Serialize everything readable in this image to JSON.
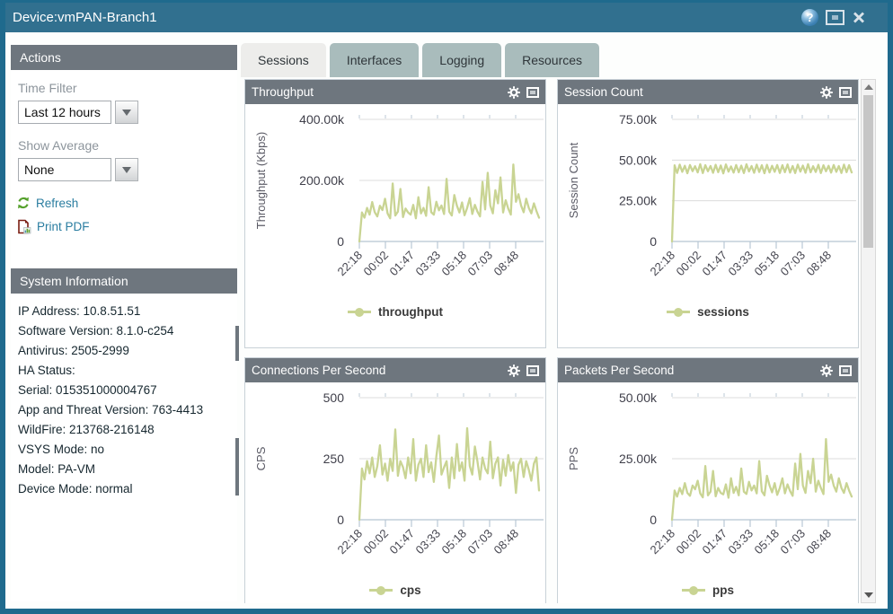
{
  "window": {
    "title": "Device:vmPAN-Branch1"
  },
  "icons": {
    "help_glyph": "?"
  },
  "colors": {
    "window_border": "#1f6a8d",
    "titlebar": "#31708f",
    "panel_header": "#6e767e",
    "tab_inactive": "#a9bcbc",
    "tab_active": "#ededeb",
    "link": "#2a7da0",
    "chart_line": "#c9d493"
  },
  "sidebar": {
    "actions": {
      "header": "Actions",
      "time_filter_label": "Time Filter",
      "time_filter_value": "Last 12 hours",
      "show_average_label": "Show Average",
      "show_average_value": "None",
      "refresh_label": "Refresh",
      "print_pdf_label": "Print PDF"
    },
    "system_information": {
      "header": "System Information",
      "lines": [
        "IP Address: 10.8.51.51",
        "Software Version: 8.1.0-c254",
        "Antivirus: 2505-2999",
        "HA Status:",
        "Serial: 015351000004767",
        "App and Threat Version: 763-4413",
        "WildFire: 213768-216148",
        "VSYS Mode: no",
        "Model: PA-VM",
        "Device Mode: normal"
      ]
    }
  },
  "tabs": [
    {
      "label": "Sessions",
      "active": true
    },
    {
      "label": "Interfaces",
      "active": false
    },
    {
      "label": "Logging",
      "active": false
    },
    {
      "label": "Resources",
      "active": false
    }
  ],
  "chart_data": [
    {
      "type": "line",
      "title": "Throughput",
      "ylabel": "Throughput (Kbps)",
      "legend": "throughput",
      "color": "#c9d493",
      "ymax": 400,
      "yticks": [
        {
          "label": "400.00k",
          "value": 400
        },
        {
          "label": "200.00k",
          "value": 200
        },
        {
          "label": "0",
          "value": 0
        }
      ],
      "x_labels": [
        "22:18",
        "00:02",
        "01:47",
        "03:33",
        "05:18",
        "07:03",
        "08:48"
      ],
      "unit": "Kbps (values in thousands)",
      "values": [
        0,
        95,
        78,
        110,
        88,
        129,
        96,
        82,
        117,
        103,
        140,
        92,
        76,
        190,
        85,
        98,
        172,
        80,
        108,
        95,
        88,
        120,
        76,
        145,
        92,
        110,
        84,
        178,
        96,
        88,
        130,
        102,
        118,
        90,
        205,
        98,
        85,
        152,
        117,
        95,
        128,
        86,
        110,
        142,
        90,
        120,
        98,
        82,
        195,
        105,
        225,
        118,
        92,
        168,
        125,
        210,
        95,
        135,
        108,
        88,
        252,
        130,
        155,
        118,
        96,
        140,
        110,
        92,
        125,
        100,
        78
      ]
    },
    {
      "type": "line",
      "title": "Session Count",
      "ylabel": "Session Count",
      "legend": "sessions",
      "color": "#c9d493",
      "ymax": 75,
      "yticks": [
        {
          "label": "75.00k",
          "value": 75
        },
        {
          "label": "50.00k",
          "value": 50
        },
        {
          "label": "25.00k",
          "value": 25
        },
        {
          "label": "0",
          "value": 0
        }
      ],
      "x_labels": [
        "22:18",
        "00:02",
        "01:47",
        "03:33",
        "05:18",
        "07:03",
        "08:48"
      ],
      "unit": "sessions (values in thousands)",
      "values": [
        0,
        46.8,
        42.1,
        47.2,
        42.8,
        46.5,
        41.9,
        47.0,
        43.2,
        46.2,
        42.4,
        47.5,
        42.0,
        46.9,
        43.1,
        46.4,
        42.2,
        47.1,
        42.6,
        46.7,
        41.8,
        47.3,
        42.9,
        46.1,
        42.3,
        47.0,
        42.5,
        46.6,
        42.0,
        47.4,
        43.0,
        46.3,
        42.2,
        47.2,
        42.7,
        46.8,
        41.9,
        47.1,
        42.4,
        46.5,
        42.8,
        47.0,
        42.1,
        46.9,
        42.6,
        47.3,
        42.3,
        46.4,
        42.0,
        47.2,
        42.9,
        46.6,
        42.2,
        47.5,
        42.5,
        46.2,
        42.7,
        47.1,
        42.0,
        46.8,
        43.1,
        46.5,
        42.3,
        47.0,
        42.8,
        46.3,
        42.1,
        47.2,
        42.6,
        46.9,
        42.4
      ]
    },
    {
      "type": "line",
      "title": "Connections Per Second",
      "ylabel": "CPS",
      "legend": "cps",
      "color": "#c9d493",
      "ymax": 500,
      "yticks": [
        {
          "label": "500",
          "value": 500
        },
        {
          "label": "250",
          "value": 250
        },
        {
          "label": "0",
          "value": 0
        }
      ],
      "x_labels": [
        "22:18",
        "00:02",
        "01:47",
        "03:33",
        "05:18",
        "07:03",
        "08:48"
      ],
      "unit": "connections per second",
      "values": [
        0,
        210,
        165,
        240,
        190,
        255,
        175,
        220,
        305,
        185,
        230,
        160,
        250,
        200,
        370,
        180,
        240,
        215,
        170,
        255,
        190,
        330,
        160,
        225,
        250,
        175,
        305,
        195,
        235,
        155,
        260,
        345,
        185,
        215,
        240,
        130,
        255,
        170,
        310,
        200,
        235,
        160,
        375,
        220,
        185,
        300,
        240,
        165,
        255,
        210,
        190,
        320,
        170,
        230,
        255,
        140,
        245,
        180,
        265,
        200,
        235,
        110,
        225,
        250,
        175,
        240,
        205,
        160,
        230,
        255,
        120
      ]
    },
    {
      "type": "line",
      "title": "Packets Per Second",
      "ylabel": "PPS",
      "legend": "pps",
      "color": "#c9d493",
      "ymax": 50,
      "yticks": [
        {
          "label": "50.00k",
          "value": 50
        },
        {
          "label": "25.00k",
          "value": 25
        },
        {
          "label": "0",
          "value": 0
        }
      ],
      "x_labels": [
        "22:18",
        "00:02",
        "01:47",
        "03:33",
        "05:18",
        "07:03",
        "08:48"
      ],
      "unit": "packets per second (values in thousands)",
      "values": [
        0,
        12,
        9.5,
        13,
        10.5,
        15,
        11,
        9.8,
        14,
        12.5,
        16,
        10.8,
        9.2,
        22,
        10,
        11.5,
        20,
        9.6,
        13,
        11,
        10.4,
        14.5,
        9,
        17,
        11,
        13.5,
        10,
        21,
        11.5,
        10.6,
        15.5,
        12,
        14,
        10.8,
        24,
        11.6,
        10,
        18,
        14,
        11.2,
        15,
        10.2,
        13,
        17,
        10.8,
        14.5,
        11.8,
        9.8,
        23,
        12.5,
        27,
        14,
        11,
        20,
        15,
        25,
        11.5,
        16,
        13,
        10.5,
        33,
        15.5,
        18.5,
        14,
        11.5,
        17,
        13,
        11,
        15,
        12,
        9.5
      ]
    }
  ]
}
